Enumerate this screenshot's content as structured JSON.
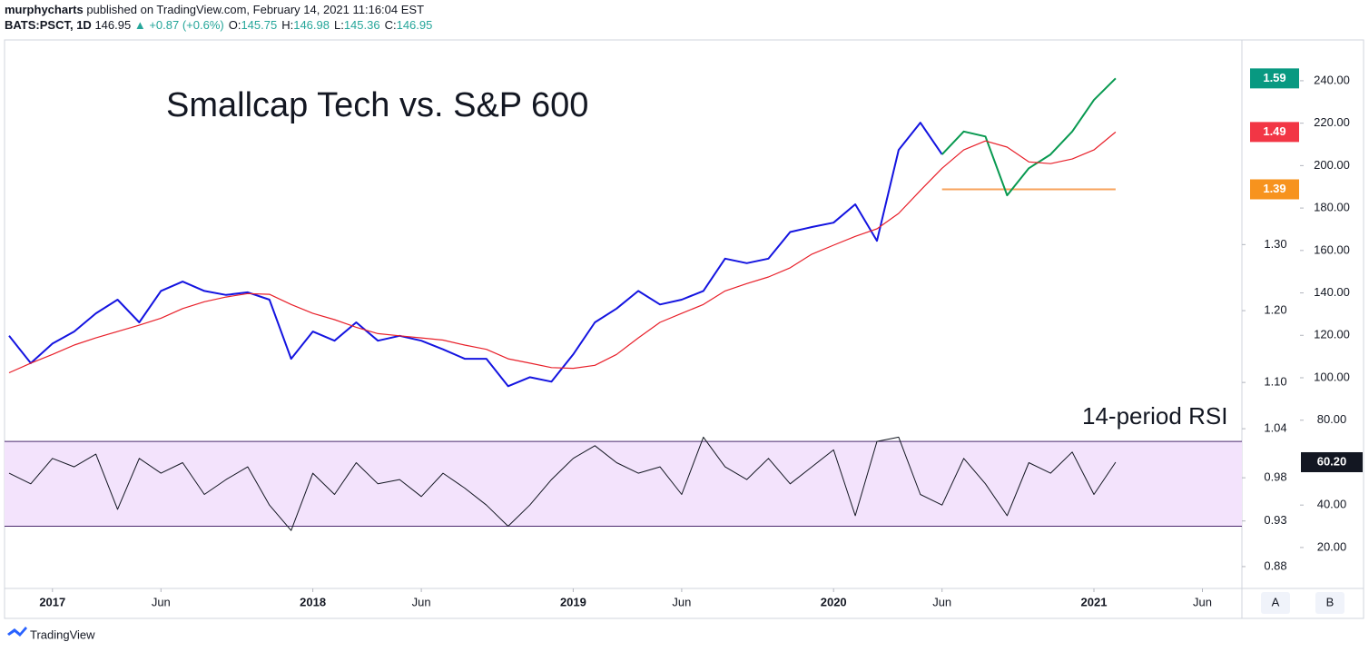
{
  "header": {
    "publisher": "murphycharts",
    "published": "published on TradingView.com, February 14, 2021 11:16:04 EST",
    "symbol": "BATS:PSCT, 1D",
    "price": "146.95",
    "change": "▲ +0.87 (+0.6%)",
    "ohlc": [
      {
        "k": "O:",
        "v": "145.75"
      },
      {
        "k": "H:",
        "v": "146.98"
      },
      {
        "k": "L:",
        "v": "145.36"
      },
      {
        "k": "C:",
        "v": "146.95"
      }
    ]
  },
  "footer": {
    "brand": "TradingView"
  },
  "buttons": [
    "A",
    "B"
  ],
  "chart_data": {
    "type": "line",
    "ylog": true,
    "annotations": [
      {
        "text": "Smallcap Tech vs. S&P 600",
        "color": "#1c1ce6"
      },
      {
        "text": "14-period RSI",
        "color": "#131722"
      }
    ],
    "x": [
      "2016-11",
      "2016-12",
      "2017-01",
      "2017-02",
      "2017-03",
      "2017-04",
      "2017-05",
      "2017-06",
      "2017-07",
      "2017-08",
      "2017-09",
      "2017-10",
      "2017-11",
      "2017-12",
      "2018-01",
      "2018-02",
      "2018-03",
      "2018-04",
      "2018-05",
      "2018-06",
      "2018-07",
      "2018-08",
      "2018-09",
      "2018-10",
      "2018-11",
      "2018-12",
      "2019-01",
      "2019-02",
      "2019-03",
      "2019-04",
      "2019-05",
      "2019-06",
      "2019-07",
      "2019-08",
      "2019-09",
      "2019-10",
      "2019-11",
      "2019-12",
      "2020-01",
      "2020-02",
      "2020-03",
      "2020-04",
      "2020-05",
      "2020-06",
      "2020-07",
      "2020-08",
      "2020-09",
      "2020-10",
      "2020-11",
      "2020-12",
      "2021-01",
      "2021-02"
    ],
    "series": [
      {
        "color": "#1414e0",
        "width": 2,
        "values": [
          1.164,
          1.126,
          1.153,
          1.17,
          1.196,
          1.216,
          1.183,
          1.229,
          1.243,
          1.229,
          1.223,
          1.227,
          1.216,
          1.132,
          1.17,
          1.157,
          1.183,
          1.157,
          1.164,
          1.157,
          1.145,
          1.132,
          1.132,
          1.095,
          1.107,
          1.101,
          1.138,
          1.183,
          1.203,
          1.229,
          1.209,
          1.216,
          1.229,
          1.278,
          1.271,
          1.278,
          1.32,
          1.328,
          1.335,
          1.365,
          1.306,
          1.458,
          1.507,
          1.45,
          null,
          null,
          null,
          null,
          null,
          null,
          null,
          null
        ]
      },
      {
        "color": "#089950",
        "width": 2,
        "values": [
          null,
          null,
          null,
          null,
          null,
          null,
          null,
          null,
          null,
          null,
          null,
          null,
          null,
          null,
          null,
          null,
          null,
          null,
          null,
          null,
          null,
          null,
          null,
          null,
          null,
          null,
          null,
          null,
          null,
          null,
          null,
          null,
          null,
          null,
          null,
          null,
          null,
          null,
          null,
          null,
          null,
          null,
          null,
          1.45,
          1.491,
          1.482,
          1.38,
          1.426,
          1.45,
          1.491,
          1.549,
          1.59
        ]
      },
      {
        "color": "#e8202a",
        "width": 1.2,
        "values": [
          1.113,
          1.126,
          1.138,
          1.151,
          1.161,
          1.17,
          1.179,
          1.189,
          1.203,
          1.213,
          1.22,
          1.225,
          1.224,
          1.209,
          1.196,
          1.187,
          1.176,
          1.167,
          1.164,
          1.161,
          1.158,
          1.151,
          1.145,
          1.132,
          1.126,
          1.12,
          1.119,
          1.123,
          1.138,
          1.161,
          1.183,
          1.196,
          1.209,
          1.229,
          1.24,
          1.25,
          1.264,
          1.285,
          1.299,
          1.313,
          1.325,
          1.35,
          1.388,
          1.426,
          1.458,
          1.474,
          1.463,
          1.437,
          1.434,
          1.442,
          1.458,
          1.49
        ]
      },
      {
        "color": "#131722",
        "width": 1,
        "axis": "y2",
        "values": [
          55,
          50,
          62,
          58,
          64,
          38,
          62,
          55,
          60,
          45,
          52,
          58,
          40,
          28,
          55,
          45,
          60,
          50,
          52,
          44,
          55,
          48,
          40,
          30,
          40,
          52,
          62,
          68,
          60,
          55,
          58,
          45,
          72,
          58,
          52,
          62,
          50,
          58,
          66,
          35,
          70,
          72,
          45,
          40,
          62,
          50,
          35,
          60,
          55,
          65,
          45,
          60.2
        ]
      }
    ],
    "hlines": [
      {
        "value": 1.39,
        "from": "2020-06",
        "to": "2021-02",
        "color": "#f7a35c"
      }
    ],
    "rsi_band": {
      "values": [
        30,
        70
      ],
      "fill": "#f3e3fc",
      "color": "#4a2a6e"
    },
    "price_labels": [
      {
        "value": 1.59,
        "color": "#089981"
      },
      {
        "value": 1.49,
        "color": "#f23645"
      },
      {
        "value": 1.39,
        "color": "#f7931e"
      },
      {
        "value": 60.2,
        "label": "60.20",
        "axis": "y2",
        "color": "#131722"
      }
    ],
    "ylim": [
      0.857,
      1.664
    ],
    "yticks": [
      0.88,
      0.93,
      0.98,
      1.04,
      {
        "value": 1.1,
        "label": "1.10"
      },
      {
        "value": 1.2,
        "label": "1.20"
      },
      {
        "value": 1.3,
        "label": "1.30"
      }
    ],
    "y2lim": [
      0.7,
      258.8
    ],
    "y2ticks": [
      {
        "value": 20,
        "label": "20.00"
      },
      {
        "value": 40,
        "label": "40.00"
      },
      {
        "value": 80,
        "label": "80.00"
      },
      {
        "value": 100,
        "label": "100.00"
      },
      {
        "value": 120,
        "label": "120.00"
      },
      {
        "value": 140,
        "label": "140.00"
      },
      {
        "value": 160,
        "label": "160.00"
      },
      {
        "value": 180,
        "label": "180.00"
      },
      {
        "value": 200,
        "label": "200.00"
      },
      {
        "value": 220,
        "label": "220.00"
      },
      {
        "value": 240,
        "label": "240.00"
      }
    ],
    "xticks": [
      {
        "value": "2017-01",
        "label": "2017"
      },
      {
        "value": "2017-06",
        "label": "Jun"
      },
      {
        "value": "2018-01",
        "label": "2018"
      },
      {
        "value": "2018-06",
        "label": "Jun"
      },
      {
        "value": "2019-01",
        "label": "2019"
      },
      {
        "value": "2019-06",
        "label": "Jun"
      },
      {
        "value": "2020-01",
        "label": "2020"
      },
      {
        "value": "2020-06",
        "label": "Jun"
      },
      {
        "value": "2021-01",
        "label": "2021"
      },
      {
        "value": "2021-06",
        "label": "Jun"
      }
    ]
  }
}
